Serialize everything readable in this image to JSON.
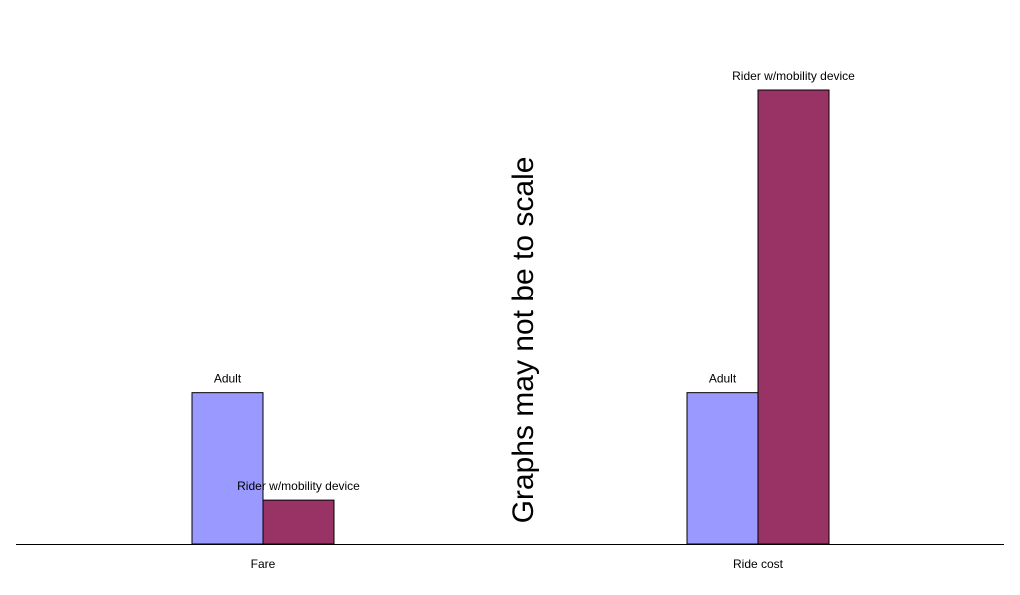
{
  "chart_data": {
    "type": "bar",
    "categories": [
      "Fare",
      "Ride cost"
    ],
    "series": [
      {
        "name": "Adult",
        "color": "#9999ff",
        "values": [
          1,
          1
        ]
      },
      {
        "name": "Rider w/mobility device",
        "color": "#993366",
        "values": [
          0.29,
          3
        ]
      }
    ],
    "value_scale": "relative",
    "ylim": [
      0,
      3.3
    ],
    "title": "",
    "xlabel": "",
    "ylabel": "",
    "grid": false,
    "annotation": "Graphs may not be to scale"
  }
}
